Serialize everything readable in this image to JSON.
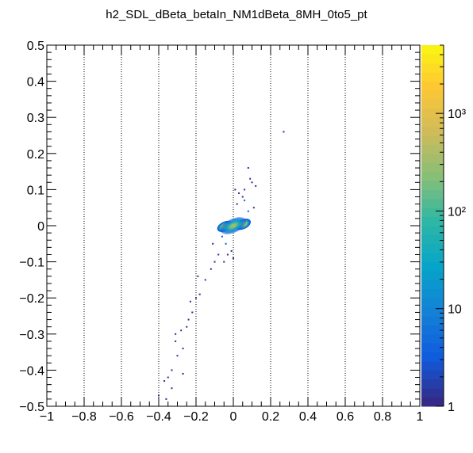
{
  "chart_data": {
    "type": "heatmap",
    "title": "h2_SDL_dBeta_betaIn_NM1dBeta_8MH_0to5_pt",
    "xlabel": "",
    "ylabel": "",
    "xlim": [
      -1,
      1
    ],
    "ylim": [
      -0.5,
      0.5
    ],
    "x_ticks": [
      "−1",
      "−0.8",
      "−0.6",
      "−0.4",
      "−0.2",
      "0",
      "0.2",
      "0.4",
      "0.6",
      "0.8",
      "1"
    ],
    "y_ticks": [
      "−0.5",
      "−0.4",
      "−0.3",
      "−0.2",
      "−0.1",
      "0",
      "0.1",
      "0.2",
      "0.3",
      "0.4",
      "0.5"
    ],
    "x_grid": "vertical dotted lines at major ticks",
    "z_scale": "log",
    "z_range": [
      1,
      5000
    ],
    "colorbar_labels": [
      "1",
      "10",
      "10²",
      "10³"
    ],
    "colors": {
      "palette": [
        "#352a87",
        "#0f5cdd",
        "#1481d6",
        "#06a4ca",
        "#2eb7a4",
        "#87bf77",
        "#d1bb59",
        "#fec832",
        "#f9fb0e"
      ],
      "background": "#ffffff",
      "frame": "#000000"
    },
    "clusters": [
      {
        "x": -0.045,
        "y": -0.002,
        "counts": 4000
      },
      {
        "x": 0.052,
        "y": 0.004,
        "counts": 4000
      },
      {
        "x": 0.0,
        "y": 0.0,
        "counts": 300
      }
    ],
    "sparse_points": [
      {
        "x": 0.27,
        "y": 0.26,
        "counts": 1
      },
      {
        "x": 0.08,
        "y": 0.16,
        "counts": 1
      },
      {
        "x": 0.12,
        "y": 0.11,
        "counts": 1
      },
      {
        "x": 0.09,
        "y": 0.13,
        "counts": 1
      },
      {
        "x": 0.05,
        "y": 0.08,
        "counts": 2
      },
      {
        "x": 0.1,
        "y": 0.12,
        "counts": 1
      },
      {
        "x": 0.11,
        "y": 0.05,
        "counts": 2
      },
      {
        "x": -0.11,
        "y": -0.05,
        "counts": 1
      },
      {
        "x": -0.08,
        "y": -0.08,
        "counts": 2
      },
      {
        "x": -0.1,
        "y": -0.1,
        "counts": 2
      },
      {
        "x": -0.12,
        "y": -0.12,
        "counts": 1
      },
      {
        "x": -0.15,
        "y": -0.15,
        "counts": 1
      },
      {
        "x": -0.18,
        "y": -0.19,
        "counts": 1
      },
      {
        "x": -0.2,
        "y": -0.2,
        "counts": 1
      },
      {
        "x": -0.22,
        "y": -0.24,
        "counts": 1
      },
      {
        "x": -0.24,
        "y": -0.26,
        "counts": 1
      },
      {
        "x": -0.25,
        "y": -0.28,
        "counts": 1
      },
      {
        "x": -0.28,
        "y": -0.29,
        "counts": 1
      },
      {
        "x": -0.31,
        "y": -0.32,
        "counts": 1
      },
      {
        "x": -0.27,
        "y": -0.34,
        "counts": 1
      },
      {
        "x": -0.3,
        "y": -0.36,
        "counts": 1
      },
      {
        "x": -0.33,
        "y": -0.4,
        "counts": 1
      },
      {
        "x": -0.27,
        "y": -0.41,
        "counts": 1
      },
      {
        "x": -0.35,
        "y": -0.42,
        "counts": 1
      },
      {
        "x": -0.37,
        "y": -0.43,
        "counts": 1
      },
      {
        "x": -0.33,
        "y": -0.45,
        "counts": 1
      },
      {
        "x": -0.36,
        "y": -0.48,
        "counts": 1
      },
      {
        "x": -0.4,
        "y": -0.47,
        "counts": 1
      },
      {
        "x": -0.31,
        "y": -0.3,
        "counts": 1
      },
      {
        "x": -0.23,
        "y": -0.21,
        "counts": 1
      },
      {
        "x": -0.19,
        "y": -0.14,
        "counts": 1
      },
      {
        "x": -0.03,
        "y": -0.08,
        "counts": 2
      },
      {
        "x": -0.01,
        "y": -0.07,
        "counts": 2
      },
      {
        "x": 0.0,
        "y": -0.09,
        "counts": 1
      },
      {
        "x": -0.05,
        "y": -0.1,
        "counts": 1
      },
      {
        "x": 0.02,
        "y": 0.06,
        "counts": 2
      },
      {
        "x": 0.03,
        "y": 0.09,
        "counts": 1
      },
      {
        "x": 0.06,
        "y": 0.07,
        "counts": 3
      },
      {
        "x": 0.08,
        "y": 0.04,
        "counts": 3
      },
      {
        "x": -0.04,
        "y": -0.05,
        "counts": 3
      },
      {
        "x": -0.06,
        "y": -0.03,
        "counts": 4
      },
      {
        "x": 0.01,
        "y": 0.1,
        "counts": 1
      },
      {
        "x": 0.06,
        "y": 0.1,
        "counts": 1
      }
    ]
  }
}
